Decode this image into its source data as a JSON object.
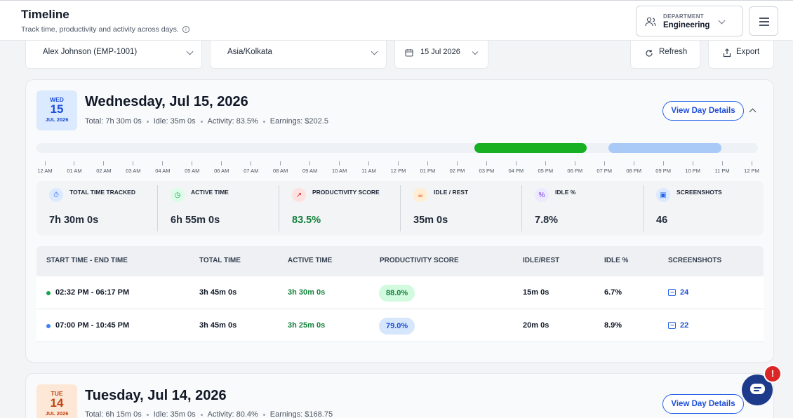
{
  "header": {
    "title": "Timeline",
    "subtitle": "Track time, productivity and activity across days.",
    "department_label": "DEPARTMENT",
    "department_value": "Engineering"
  },
  "filters": {
    "employee": "Alex Johnson (EMP-1001)",
    "timezone": "Asia/Kolkata",
    "date": "15 Jul 2026",
    "refresh_label": "Refresh",
    "export_label": "Export"
  },
  "days": [
    {
      "weekday": "WED",
      "day": "15",
      "month_year": "JUL 2026",
      "title": "Wednesday, Jul 15, 2026",
      "total": "Total: 7h 30m 0s",
      "idle": "Idle: 35m 0s",
      "activity": "Activity: 83.5%",
      "earnings": "Earnings: $202.5",
      "view_label": "View Day Details",
      "hours": [
        "12 AM",
        "01 AM",
        "02 AM",
        "03 AM",
        "04 AM",
        "05 AM",
        "06 AM",
        "07 AM",
        "08 AM",
        "09 AM",
        "10 AM",
        "11 AM",
        "12 PM",
        "01 PM",
        "02 PM",
        "03 PM",
        "04 PM",
        "05 PM",
        "06 PM",
        "07 PM",
        "08 PM",
        "09 PM",
        "10 PM",
        "11 PM",
        "12 PM"
      ],
      "stats": [
        {
          "label": "TOTAL TIME TRACKED",
          "value": "7h 30m 0s",
          "icon": "stopwatch-icon"
        },
        {
          "label": "ACTIVE TIME",
          "value": "6h 55m 0s",
          "icon": "clock-icon"
        },
        {
          "label": "PRODUCTIVITY SCORE",
          "value": "83.5%",
          "icon": "trend-up-icon"
        },
        {
          "label": "IDLE / REST",
          "value": "35m 0s",
          "icon": "coffee-icon"
        },
        {
          "label": "IDLE %",
          "value": "7.8%",
          "icon": "percent-icon"
        },
        {
          "label": "SCREENSHOTS",
          "value": "46",
          "icon": "image-icon"
        }
      ],
      "table": {
        "headers": [
          "START TIME - END TIME",
          "TOTAL TIME",
          "ACTIVE TIME",
          "PRODUCTIVITY SCORE",
          "IDLE/REST",
          "IDLE %",
          "SCREENSHOTS"
        ],
        "rows": [
          {
            "range": "02:32 PM - 06:17 PM",
            "total": "3h 45m 0s",
            "active": "3h 30m 0s",
            "score": "88.0%",
            "idle": "15m 0s",
            "idle_pct": "6.7%",
            "shots": "24"
          },
          {
            "range": "07:00 PM - 10:45 PM",
            "total": "3h 45m 0s",
            "active": "3h 25m 0s",
            "score": "79.0%",
            "idle": "20m 0s",
            "idle_pct": "8.9%",
            "shots": "22"
          }
        ]
      }
    },
    {
      "weekday": "TUE",
      "day": "14",
      "month_year": "JUL 2026",
      "title": "Tuesday, Jul 14, 2026",
      "total": "Total: 6h 15m 0s",
      "idle": "Idle: 35m 0s",
      "activity": "Activity: 80.4%",
      "earnings": "Earnings: $168.75",
      "view_label": "View Day Details"
    }
  ],
  "colors": {
    "session_1": "#16b022",
    "session_2": "#a9c9f7",
    "accent": "#2563eb",
    "alert": "#dc2626"
  },
  "chat": {
    "icon": "chat-icon",
    "badge": "!"
  }
}
